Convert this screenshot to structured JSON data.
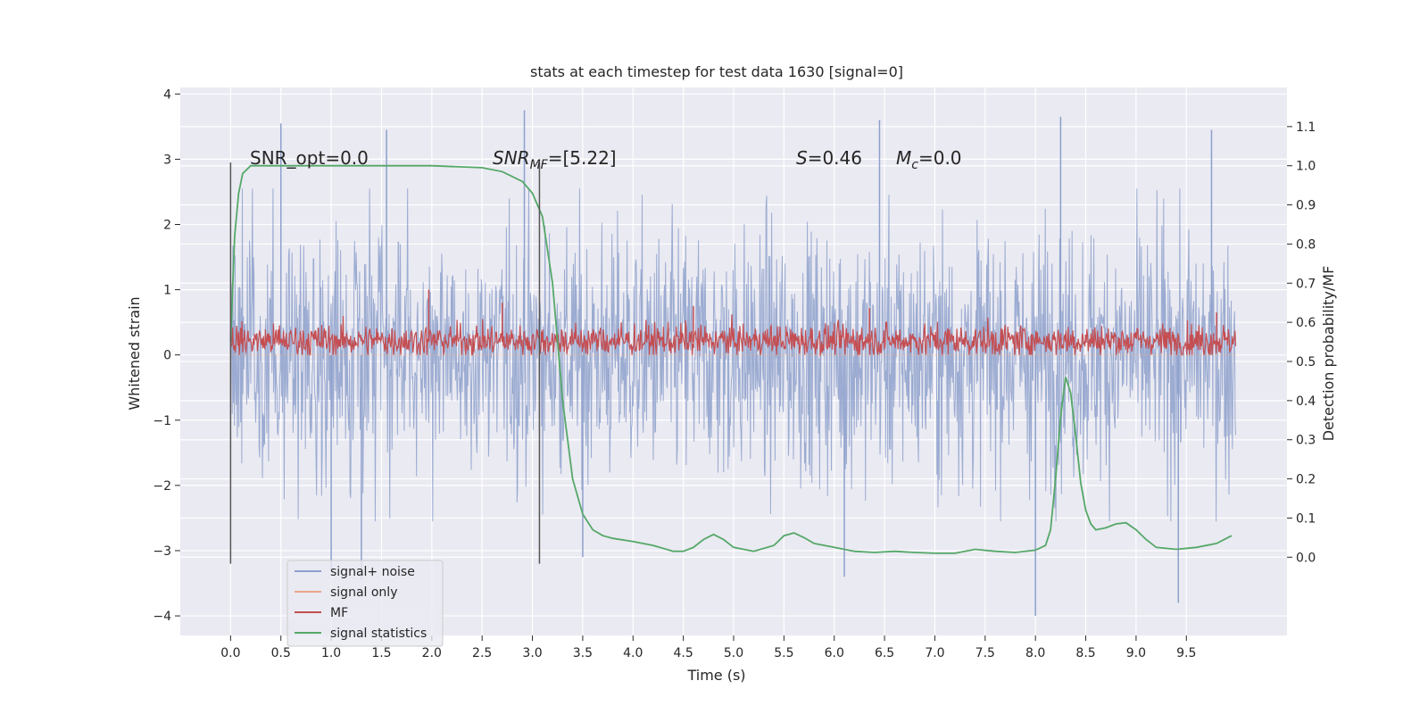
{
  "chart_data": {
    "type": "line",
    "title": "stats at each timestep for test data 1630 [signal=0]",
    "xlabel": "Time (s)",
    "ylabel_left": "Whitened strain",
    "ylabel_right": "Detection probability/MF",
    "xlim": [
      -0.5,
      10.5
    ],
    "ylim_left": [
      -4.3,
      4.1
    ],
    "ylim_right": [
      -0.2,
      1.2
    ],
    "x_ticks": [
      "0.0",
      "0.5",
      "1.0",
      "1.5",
      "2.0",
      "2.5",
      "3.0",
      "3.5",
      "4.0",
      "4.5",
      "5.0",
      "5.5",
      "6.0",
      "6.5",
      "7.0",
      "7.5",
      "8.0",
      "8.5",
      "9.0",
      "9.5"
    ],
    "y_ticks_left": [
      "4",
      "3",
      "2",
      "1",
      "0",
      "−1",
      "−2",
      "−3",
      "−4"
    ],
    "y_ticks_right": [
      "1.1",
      "1.0",
      "0.9",
      "0.8",
      "0.7",
      "0.6",
      "0.5",
      "0.4",
      "0.3",
      "0.2",
      "0.1",
      "0.0"
    ],
    "grid": true,
    "legend_position": "lower-left",
    "vertical_lines_x": [
      0.0,
      3.07
    ],
    "annotations": {
      "snr_opt": "SNR_opt=0.0",
      "snr_mf_main": "SNR",
      "snr_mf_sub": "MF",
      "snr_mf_value": "=[5.22]",
      "s_sym": "S",
      "s_value": "=0.46",
      "mc_sym": "M",
      "mc_sub": "c",
      "mc_value": "=0.0"
    },
    "series": [
      {
        "name": "signal+ noise",
        "color": "#8da0cb",
        "axis": "left",
        "x_range": [
          0.0,
          9.99
        ],
        "approx_range": [
          -4.0,
          3.75
        ],
        "peaks": [
          [
            0.5,
            3.55
          ],
          [
            1.55,
            3.45
          ],
          [
            2.92,
            3.75
          ],
          [
            6.45,
            3.6
          ],
          [
            8.25,
            3.65
          ],
          [
            9.75,
            3.45
          ],
          [
            1.0,
            -3.3
          ],
          [
            1.3,
            -3.45
          ],
          [
            3.5,
            -3.1
          ],
          [
            6.1,
            -3.4
          ],
          [
            8.0,
            -4.0
          ],
          [
            9.42,
            -3.8
          ]
        ]
      },
      {
        "name": "signal only",
        "color": "#e8a687",
        "axis": "left",
        "values_constant": 0.0
      },
      {
        "name": "MF",
        "color": "#c44e52",
        "axis": "left",
        "x_range": [
          0.0,
          9.99
        ],
        "approx_range": [
          -0.05,
          1.0
        ]
      },
      {
        "name": "signal statistics",
        "color": "#55a868",
        "axis": "right",
        "x": [
          0.0,
          0.04,
          0.08,
          0.12,
          0.2,
          0.3,
          0.5,
          1.0,
          1.5,
          2.0,
          2.5,
          2.7,
          2.9,
          3.0,
          3.1,
          3.2,
          3.3,
          3.4,
          3.5,
          3.6,
          3.7,
          3.8,
          4.0,
          4.2,
          4.4,
          4.5,
          4.6,
          4.7,
          4.8,
          4.9,
          5.0,
          5.2,
          5.4,
          5.5,
          5.6,
          5.7,
          5.8,
          6.0,
          6.2,
          6.4,
          6.6,
          6.8,
          7.0,
          7.2,
          7.4,
          7.6,
          7.8,
          8.0,
          8.1,
          8.15,
          8.2,
          8.25,
          8.3,
          8.35,
          8.4,
          8.45,
          8.5,
          8.55,
          8.6,
          8.7,
          8.8,
          8.9,
          9.0,
          9.1,
          9.2,
          9.4,
          9.6,
          9.8,
          9.95
        ],
        "y": [
          0.55,
          0.82,
          0.93,
          0.98,
          1.0,
          1.0,
          1.0,
          1.0,
          1.0,
          1.0,
          0.995,
          0.985,
          0.96,
          0.93,
          0.87,
          0.7,
          0.4,
          0.2,
          0.11,
          0.07,
          0.055,
          0.048,
          0.04,
          0.03,
          0.015,
          0.015,
          0.025,
          0.045,
          0.058,
          0.045,
          0.025,
          0.015,
          0.03,
          0.055,
          0.062,
          0.05,
          0.035,
          0.025,
          0.015,
          0.012,
          0.015,
          0.012,
          0.01,
          0.01,
          0.02,
          0.015,
          0.012,
          0.018,
          0.03,
          0.07,
          0.2,
          0.36,
          0.46,
          0.42,
          0.31,
          0.19,
          0.12,
          0.085,
          0.07,
          0.075,
          0.085,
          0.088,
          0.07,
          0.045,
          0.025,
          0.02,
          0.025,
          0.035,
          0.055
        ]
      }
    ]
  }
}
